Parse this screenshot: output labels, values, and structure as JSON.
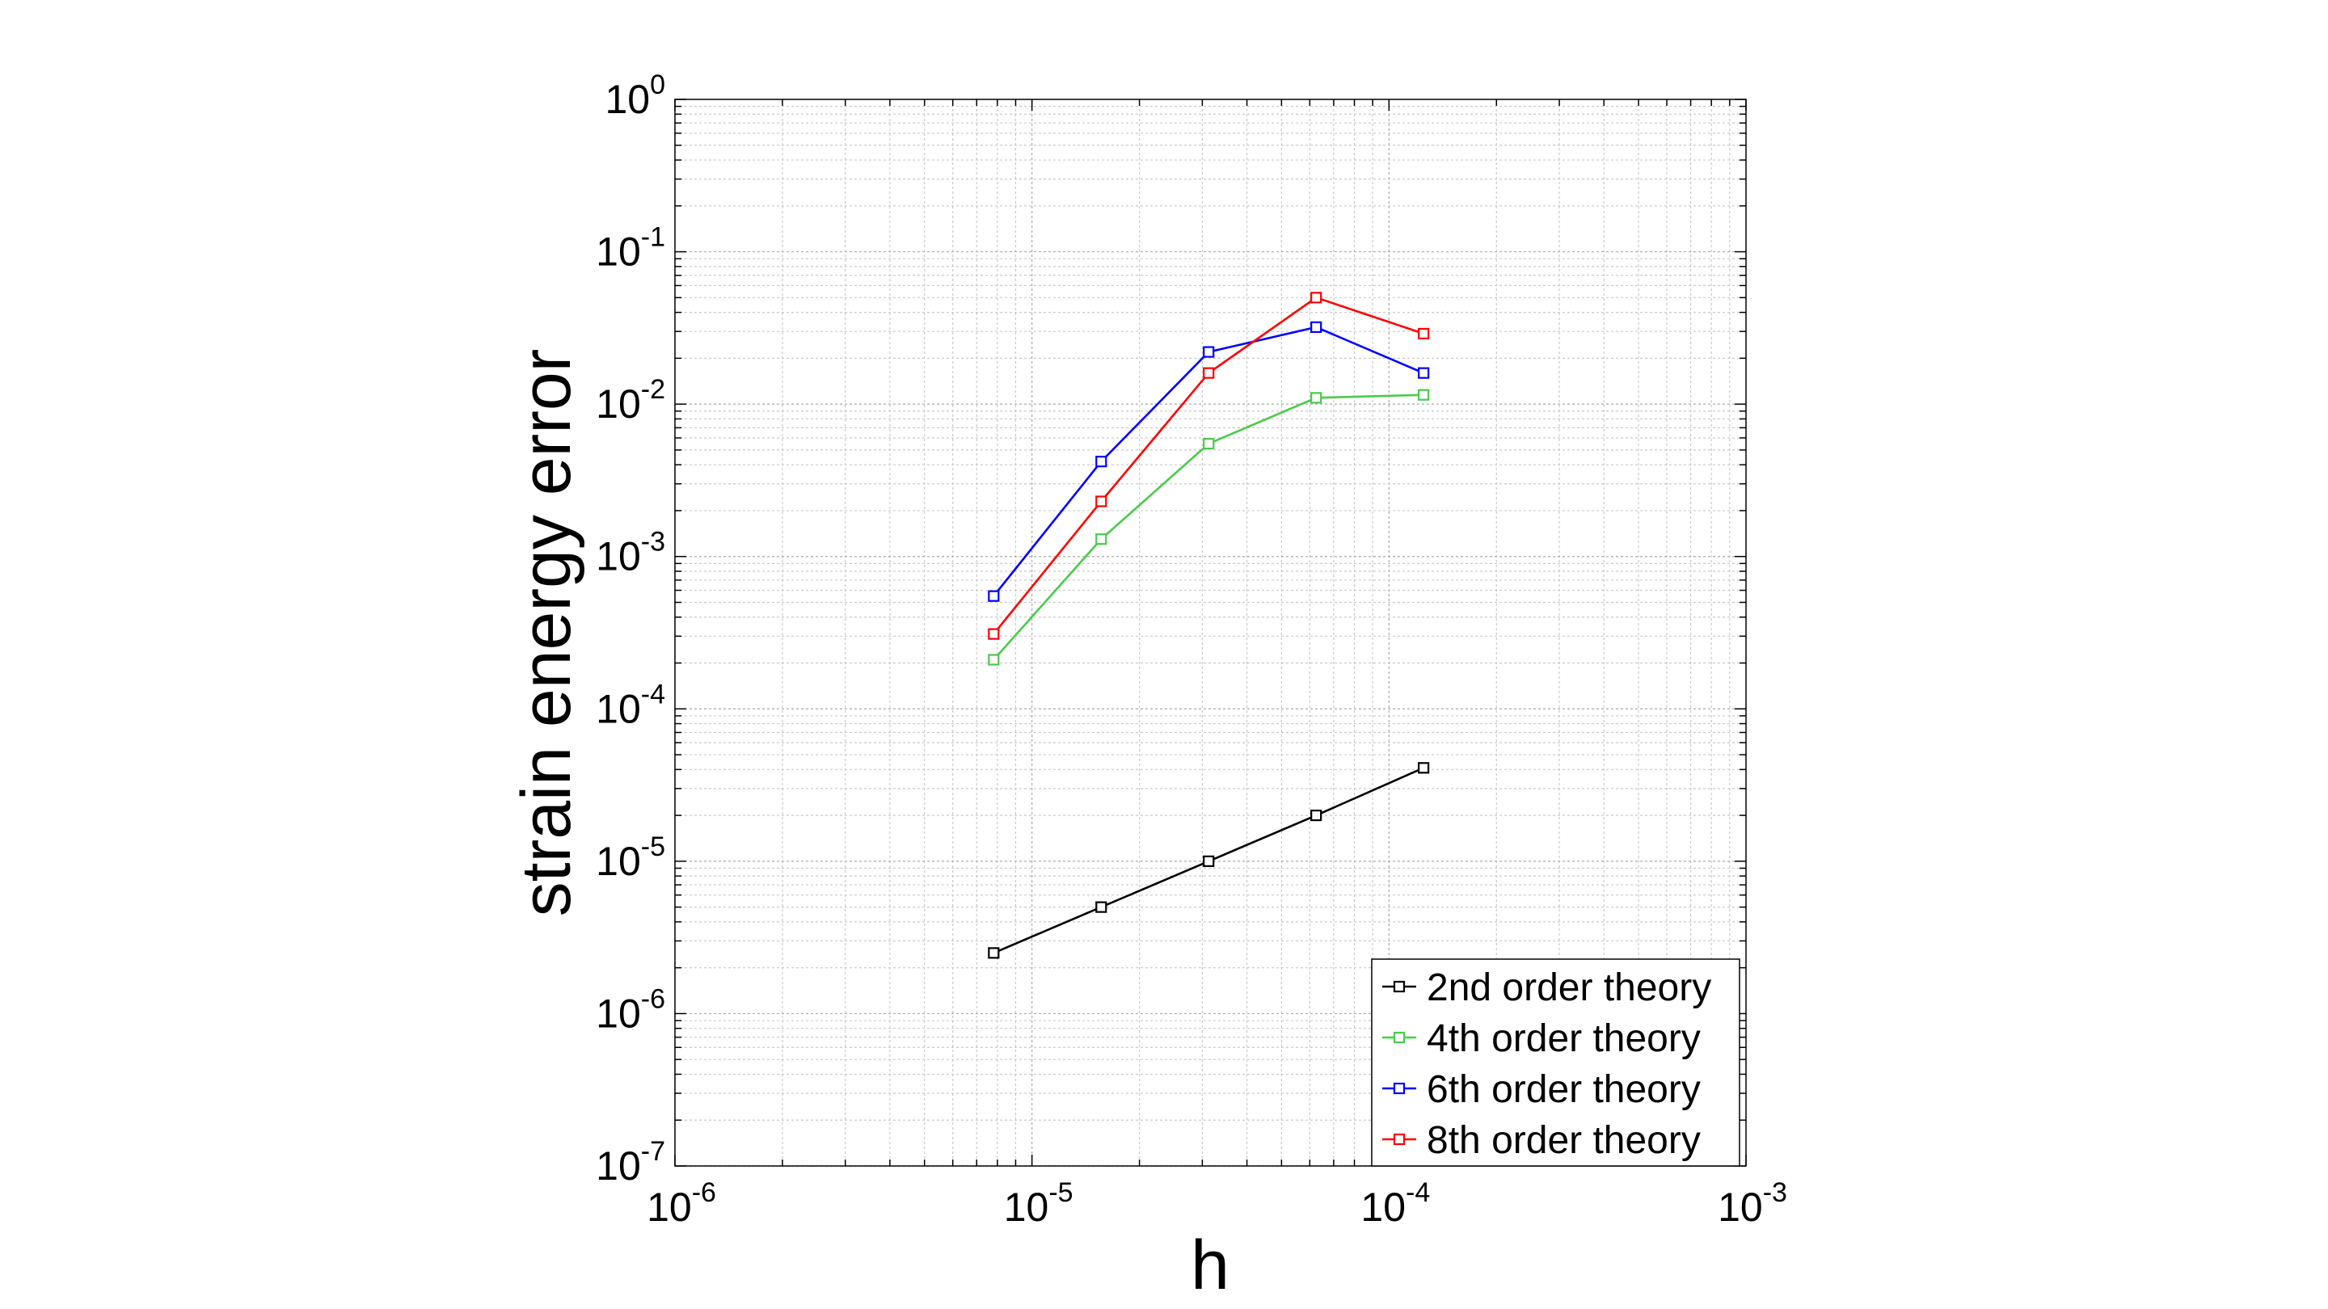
{
  "chart_data": {
    "type": "line",
    "xlabel": "h",
    "ylabel": "strain energy error",
    "xscale": "log",
    "yscale": "log",
    "xlim": [
      1e-06,
      0.001
    ],
    "ylim": [
      1e-07,
      1
    ],
    "grid": true,
    "legend_position": "bottom-right",
    "x_ticks": [
      {
        "base": "10",
        "exp": "-6"
      },
      {
        "base": "10",
        "exp": "-5"
      },
      {
        "base": "10",
        "exp": "-4"
      },
      {
        "base": "10",
        "exp": "-3"
      }
    ],
    "y_ticks": [
      {
        "base": "10",
        "exp": "-7"
      },
      {
        "base": "10",
        "exp": "-6"
      },
      {
        "base": "10",
        "exp": "-5"
      },
      {
        "base": "10",
        "exp": "-4"
      },
      {
        "base": "10",
        "exp": "-3"
      },
      {
        "base": "10",
        "exp": "-2"
      },
      {
        "base": "10",
        "exp": "-1"
      },
      {
        "base": "10",
        "exp": "0"
      }
    ],
    "x": [
      7.8125e-06,
      1.5625e-05,
      3.125e-05,
      6.25e-05,
      0.000125
    ],
    "series": [
      {
        "name": "2nd order theory",
        "color": "#000000",
        "marker": "square",
        "values": [
          2.5e-06,
          5e-06,
          1e-05,
          2e-05,
          4.1e-05
        ]
      },
      {
        "name": "4th order theory",
        "color": "#4cc94c",
        "marker": "square",
        "values": [
          0.00021,
          0.0013,
          0.0055,
          0.011,
          0.0115
        ]
      },
      {
        "name": "6th order theory",
        "color": "#0000ff",
        "marker": "square",
        "values": [
          0.00055,
          0.0042,
          0.022,
          0.032,
          0.016
        ]
      },
      {
        "name": "8th order theory",
        "color": "#ff0000",
        "marker": "square",
        "values": [
          0.00031,
          0.0023,
          0.016,
          0.05,
          0.029
        ]
      }
    ]
  }
}
